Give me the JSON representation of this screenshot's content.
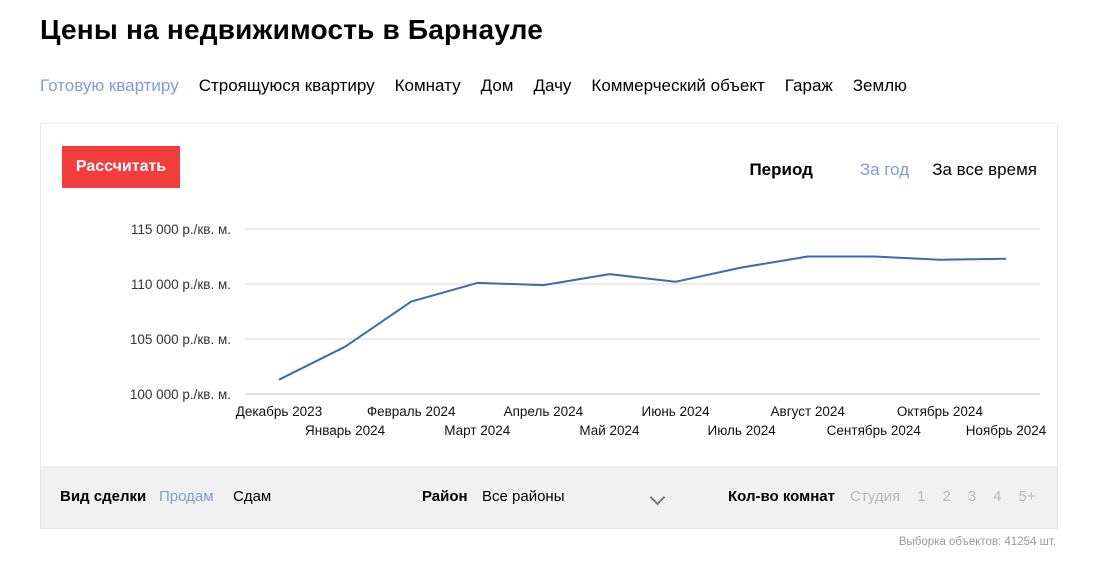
{
  "page": {
    "title": "Цены на недвижимость в Барнауле"
  },
  "tabs": [
    {
      "label": "Готовую квартиру",
      "active": true
    },
    {
      "label": "Строящуюся квартиру",
      "active": false
    },
    {
      "label": "Комнату",
      "active": false
    },
    {
      "label": "Дом",
      "active": false
    },
    {
      "label": "Дачу",
      "active": false
    },
    {
      "label": "Коммерческий объект",
      "active": false
    },
    {
      "label": "Гараж",
      "active": false
    },
    {
      "label": "Землю",
      "active": false
    }
  ],
  "controls": {
    "calculate_label": "Рассчитать",
    "period_label": "Период",
    "period_options": [
      {
        "label": "За год",
        "active": true
      },
      {
        "label": "За все время",
        "active": false
      }
    ]
  },
  "chart_data": {
    "type": "line",
    "title": "",
    "xlabel": "",
    "ylabel": "",
    "ylim": [
      100000,
      115000
    ],
    "y_ticks": [
      100000,
      105000,
      110000,
      115000
    ],
    "y_tick_labels": [
      "100 000 р./кв. м.",
      "105 000 р./кв. м.",
      "110 000 р./кв. м.",
      "115 000 р./кв. м."
    ],
    "categories": [
      "Декабрь 2023",
      "Январь 2024",
      "Февраль 2024",
      "Март 2024",
      "Апрель 2024",
      "Май 2024",
      "Июнь 2024",
      "Июль 2024",
      "Август 2024",
      "Сентябрь 2024",
      "Октябрь 2024",
      "Ноябрь 2024"
    ],
    "grid": true,
    "legend": "none",
    "series": [
      {
        "color": "#3d67b8",
        "values": [
          101300,
          104300,
          108400,
          110100,
          109900,
          110900,
          110200,
          111500,
          112500,
          112500,
          112200,
          112300
        ]
      }
    ]
  },
  "filters": {
    "deal_label": "Вид сделки",
    "deal_options": [
      {
        "label": "Продам",
        "active": true
      },
      {
        "label": "Сдам",
        "active": false
      }
    ],
    "district_label": "Район",
    "district_value": "Все районы",
    "rooms_label": "Кол-во комнат",
    "rooms_options": [
      "Студия",
      "1",
      "2",
      "3",
      "4",
      "5+"
    ]
  },
  "footnote": "Выборка объектов: 41254 шт."
}
